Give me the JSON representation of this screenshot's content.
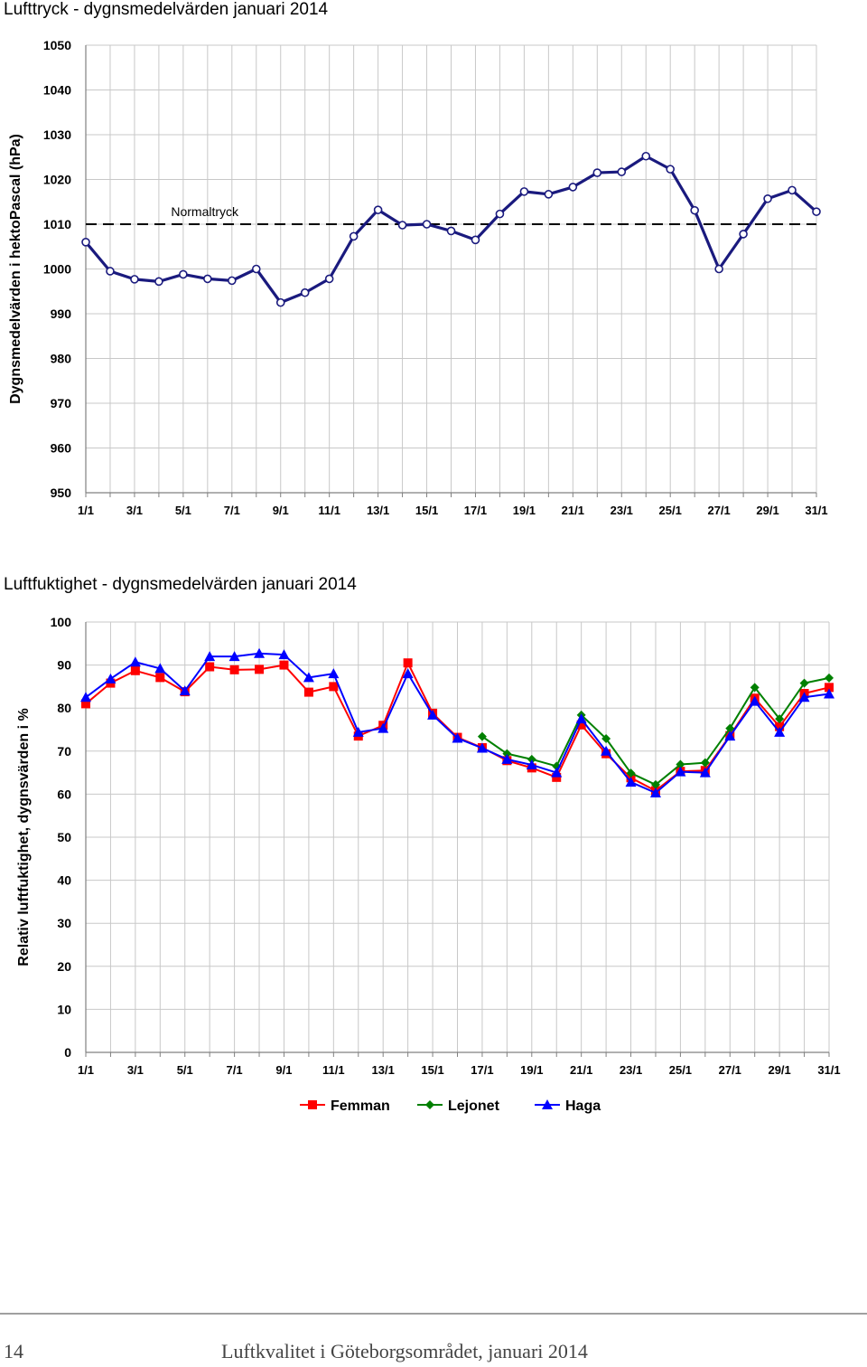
{
  "page": {
    "number": "14",
    "footer": "Luftkvalitet i Göteborgsområdet, januari 2014"
  },
  "chart_data": [
    {
      "type": "line",
      "title": "Lufttryck - dygnsmedelvärden januari 2014",
      "xlabel": "",
      "ylabel": "Dygnsmedelvärden i hektoPascal (hPa)",
      "ylim": [
        950,
        1050
      ],
      "yticks": [
        950,
        960,
        970,
        980,
        990,
        1000,
        1010,
        1020,
        1030,
        1040,
        1050
      ],
      "xtick_labels": [
        "1/1",
        "3/1",
        "5/1",
        "7/1",
        "9/1",
        "11/1",
        "13/1",
        "15/1",
        "17/1",
        "19/1",
        "21/1",
        "23/1",
        "25/1",
        "27/1",
        "29/1",
        "31/1"
      ],
      "x": [
        "1/1",
        "2/1",
        "3/1",
        "4/1",
        "5/1",
        "6/1",
        "7/1",
        "8/1",
        "9/1",
        "10/1",
        "11/1",
        "12/1",
        "13/1",
        "14/1",
        "15/1",
        "16/1",
        "17/1",
        "18/1",
        "19/1",
        "20/1",
        "21/1",
        "22/1",
        "23/1",
        "24/1",
        "25/1",
        "26/1",
        "27/1",
        "28/1",
        "29/1",
        "30/1",
        "31/1"
      ],
      "series": [
        {
          "color": "#1a1a7e",
          "values": [
            1006,
            999.5,
            997.7,
            997.2,
            998.8,
            997.8,
            997.4,
            1000,
            992.5,
            994.7,
            997.8,
            1007.3,
            1013.2,
            1009.8,
            1010,
            1008.5,
            1006.5,
            1012.3,
            1017.3,
            1016.7,
            1018.3,
            1021.5,
            1021.7,
            1025.2,
            1022.3,
            1013.1,
            1000,
            1007.8,
            1015.7,
            1017.6,
            1012.8
          ]
        }
      ],
      "reference_line": {
        "label": "Normaltryck",
        "value": 1010
      },
      "grid": true
    },
    {
      "type": "line",
      "title": "Luftfuktighet - dygnsmedelvärden januari 2014",
      "xlabel": "",
      "ylabel": "Relativ luftfuktighet, dygnsvärden i %",
      "ylim": [
        0,
        100
      ],
      "yticks": [
        0,
        10,
        20,
        30,
        40,
        50,
        60,
        70,
        80,
        90,
        100
      ],
      "xtick_labels": [
        "1/1",
        "3/1",
        "5/1",
        "7/1",
        "9/1",
        "11/1",
        "13/1",
        "15/1",
        "17/1",
        "19/1",
        "21/1",
        "23/1",
        "25/1",
        "27/1",
        "29/1",
        "31/1"
      ],
      "x": [
        "1/1",
        "2/1",
        "3/1",
        "4/1",
        "5/1",
        "6/1",
        "7/1",
        "8/1",
        "9/1",
        "10/1",
        "11/1",
        "12/1",
        "13/1",
        "14/1",
        "15/1",
        "16/1",
        "17/1",
        "18/1",
        "19/1",
        "20/1",
        "21/1",
        "22/1",
        "23/1",
        "24/1",
        "25/1",
        "26/1",
        "27/1",
        "28/1",
        "29/1",
        "30/1",
        "31/1"
      ],
      "series": [
        {
          "name": "Femman",
          "color": "#ff0000",
          "marker": "square",
          "values": [
            81,
            85.8,
            88.7,
            87.1,
            83.8,
            89.6,
            88.9,
            89,
            90,
            83.7,
            85,
            73.5,
            76,
            90.5,
            78.8,
            73.2,
            70.8,
            67.8,
            66.1,
            63.9,
            76.1,
            69.4,
            63.8,
            60.8,
            65.3,
            65.5,
            73.6,
            82.3,
            75.7,
            83.4,
            84.8
          ]
        },
        {
          "name": "Lejonet",
          "color": "#008000",
          "marker": "diamond",
          "values": [
            null,
            null,
            null,
            null,
            null,
            null,
            null,
            null,
            null,
            null,
            null,
            null,
            null,
            null,
            null,
            null,
            73.4,
            69.4,
            68.1,
            66.5,
            78.4,
            72.9,
            64.9,
            62.2,
            66.9,
            67.3,
            75.3,
            84.8,
            77.5,
            85.8,
            87
          ]
        },
        {
          "name": "Haga",
          "color": "#0000ff",
          "marker": "triangle",
          "values": [
            82.5,
            86.8,
            90.7,
            89.2,
            84,
            92,
            92,
            92.7,
            92.4,
            87.1,
            88,
            74.4,
            75.3,
            88,
            78.4,
            73,
            70.7,
            68.1,
            66.8,
            65,
            77.5,
            70,
            62.8,
            60.3,
            65.2,
            65,
            73.5,
            81.6,
            74.4,
            82.5,
            83.3
          ]
        }
      ],
      "legend_position": "bottom",
      "grid": true
    }
  ]
}
